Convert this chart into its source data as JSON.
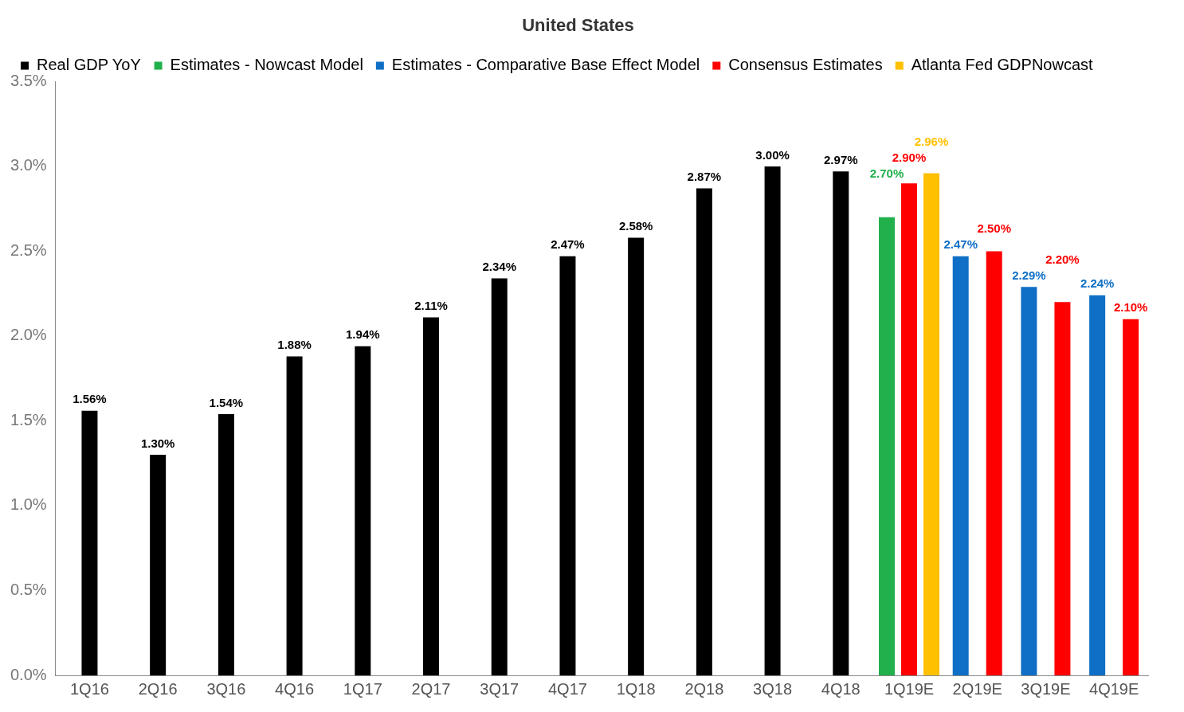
{
  "chart_data": {
    "type": "bar",
    "title": "United States",
    "categories": [
      "1Q16",
      "2Q16",
      "3Q16",
      "4Q16",
      "1Q17",
      "2Q17",
      "3Q17",
      "4Q17",
      "1Q18",
      "2Q18",
      "3Q18",
      "4Q18",
      "1Q19E",
      "2Q19E",
      "3Q19E",
      "4Q19E"
    ],
    "series": [
      {
        "name": "Real GDP YoY",
        "color": "#000000",
        "values": [
          1.56,
          1.3,
          1.54,
          1.88,
          1.94,
          2.11,
          2.34,
          2.47,
          2.58,
          2.87,
          3.0,
          2.97,
          null,
          null,
          null,
          null
        ],
        "value_labels": [
          "1.56%",
          "1.30%",
          "1.54%",
          "1.88%",
          "1.94%",
          "2.11%",
          "2.34%",
          "2.47%",
          "2.58%",
          "2.87%",
          "3.00%",
          "2.97%",
          null,
          null,
          null,
          null
        ]
      },
      {
        "name": "Estimates - Nowcast Model",
        "color": "#21b04b",
        "values": [
          null,
          null,
          null,
          null,
          null,
          null,
          null,
          null,
          null,
          null,
          null,
          null,
          2.7,
          null,
          null,
          null
        ],
        "value_labels": [
          null,
          null,
          null,
          null,
          null,
          null,
          null,
          null,
          null,
          null,
          null,
          null,
          "2.70%",
          null,
          null,
          null
        ]
      },
      {
        "name": "Estimates - Comparative Base Effect Model",
        "color": "#0f6fc6",
        "values": [
          null,
          null,
          null,
          null,
          null,
          null,
          null,
          null,
          null,
          null,
          null,
          null,
          null,
          2.47,
          2.29,
          2.24
        ],
        "value_labels": [
          null,
          null,
          null,
          null,
          null,
          null,
          null,
          null,
          null,
          null,
          null,
          null,
          null,
          "2.47%",
          "2.29%",
          "2.24%"
        ]
      },
      {
        "name": "Consensus Estimates",
        "color": "#ff0000",
        "values": [
          null,
          null,
          null,
          null,
          null,
          null,
          null,
          null,
          null,
          null,
          null,
          null,
          2.9,
          2.5,
          2.2,
          2.1
        ],
        "value_labels": [
          null,
          null,
          null,
          null,
          null,
          null,
          null,
          null,
          null,
          null,
          null,
          null,
          "2.90%",
          "2.50%",
          "2.20%",
          "2.10%"
        ]
      },
      {
        "name": "Atlanta Fed GDPNowcast",
        "color": "#ffc000",
        "values": [
          null,
          null,
          null,
          null,
          null,
          null,
          null,
          null,
          null,
          null,
          null,
          null,
          2.96,
          null,
          null,
          null
        ],
        "value_labels": [
          null,
          null,
          null,
          null,
          null,
          null,
          null,
          null,
          null,
          null,
          null,
          null,
          "2.96%",
          null,
          null,
          null
        ]
      }
    ],
    "ylim": [
      0,
      3.5
    ],
    "yticks": [
      {
        "value": 0,
        "label": "0.0%"
      },
      {
        "value": 0.5,
        "label": "0.5%"
      },
      {
        "value": 1,
        "label": "1.0%"
      },
      {
        "value": 1.5,
        "label": "1.5%"
      },
      {
        "value": 2,
        "label": "2.0%"
      },
      {
        "value": 2.5,
        "label": "2.5%"
      },
      {
        "value": 3,
        "label": "3.0%"
      },
      {
        "value": 3.5,
        "label": "3.5%"
      }
    ],
    "grid": false,
    "legend": "top"
  }
}
